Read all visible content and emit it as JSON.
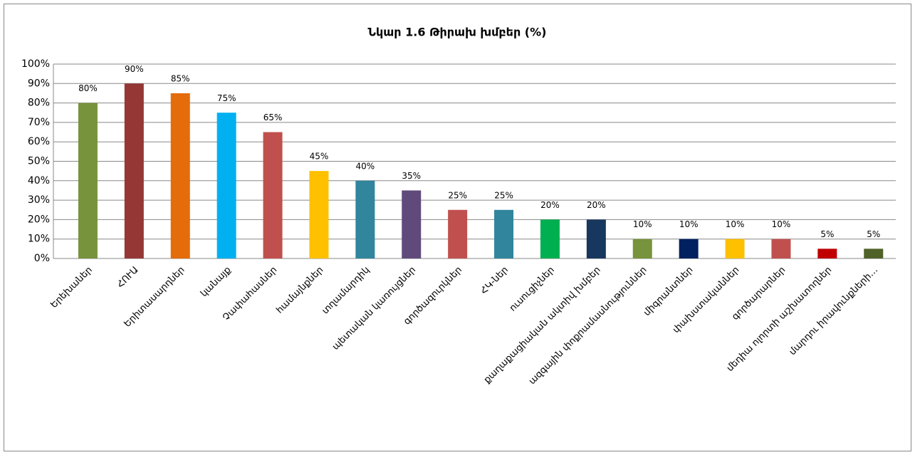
{
  "chart_data": {
    "type": "bar",
    "title": "Նկար 1.6 Թիրախ խմբեր (%)",
    "categories": [
      "Երեխաներ",
      "ՀՈՒԱ",
      "Երիտասարդներ",
      "կանայք",
      "Չափահասներ",
      "համայնքներ",
      "տղամարդիկ",
      "պետական կառույցներ",
      "գործազուրկներ",
      "ՀԿ-ներ",
      "ուսուցիչներ",
      "քաղաքացիական ակտիվ խմբեր",
      "ազգային փոքրամասնություններ",
      "միգրանտներ",
      "փախստականներ",
      "գործարարներ",
      "մեդիա ոլորտի աշխատողներ",
      "մարդու իրավունքների…"
    ],
    "values": [
      80,
      90,
      85,
      75,
      65,
      45,
      40,
      35,
      25,
      25,
      20,
      20,
      10,
      10,
      10,
      10,
      5,
      5
    ],
    "value_labels": [
      "80%",
      "90%",
      "85%",
      "75%",
      "65%",
      "45%",
      "40%",
      "35%",
      "25%",
      "25%",
      "20%",
      "20%",
      "10%",
      "10%",
      "10%",
      "10%",
      "5%",
      "5%"
    ],
    "colors": [
      "#77933c",
      "#953735",
      "#e46c0a",
      "#00b0f0",
      "#c0504d",
      "#ffc000",
      "#31859c",
      "#604a7b",
      "#c0504d",
      "#31859c",
      "#00b050",
      "#17375e",
      "#77933c",
      "#002060",
      "#ffc000",
      "#c0504d",
      "#c00000",
      "#4f6228"
    ],
    "ylim": [
      0,
      100
    ],
    "yticks": [
      {
        "value": 0,
        "label": "0%"
      },
      {
        "value": 10,
        "label": "10%"
      },
      {
        "value": 20,
        "label": "20%"
      },
      {
        "value": 30,
        "label": "30%"
      },
      {
        "value": 40,
        "label": "40%"
      },
      {
        "value": 50,
        "label": "50%"
      },
      {
        "value": 60,
        "label": "60%"
      },
      {
        "value": 70,
        "label": "70%"
      },
      {
        "value": 80,
        "label": "80%"
      },
      {
        "value": 90,
        "label": "90%"
      },
      {
        "value": 100,
        "label": "100%"
      }
    ],
    "grid": true
  }
}
